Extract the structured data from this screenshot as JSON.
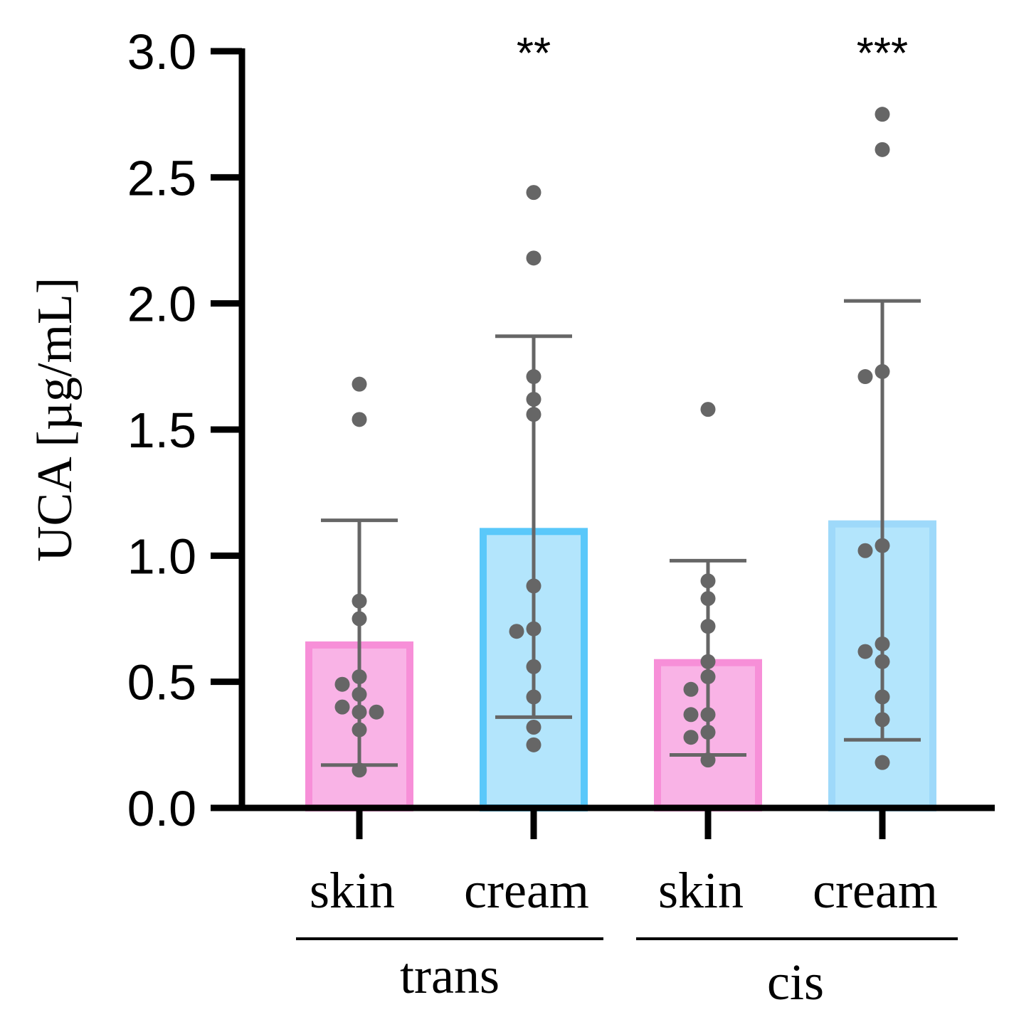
{
  "chart_data": {
    "type": "bar",
    "ylabel": "UCA [µg/mL]",
    "ylim": [
      0,
      3.0
    ],
    "yticks": [
      "0.0",
      "0.5",
      "1.0",
      "1.5",
      "2.0",
      "2.5",
      "3.0"
    ],
    "grid": false,
    "categories": [
      "skin",
      "cream",
      "skin",
      "cream"
    ],
    "groups": [
      {
        "label": "trans",
        "categories": [
          0,
          1
        ]
      },
      {
        "label": "cis",
        "categories": [
          2,
          3
        ]
      }
    ],
    "bars": [
      {
        "category": "skin",
        "group": "trans",
        "mean": 0.66,
        "error_low": 0.17,
        "error_high": 1.14,
        "significance": "",
        "fill": "#f9b3e6",
        "stroke": "#f78fd8",
        "points": [
          1.68,
          1.54,
          0.82,
          0.75,
          0.52,
          0.49,
          0.45,
          0.4,
          0.38,
          0.38,
          0.31,
          0.15
        ]
      },
      {
        "category": "cream",
        "group": "trans",
        "mean": 1.11,
        "error_low": 0.36,
        "error_high": 1.87,
        "significance": "**",
        "fill": "#b3e5fc",
        "stroke": "#5ac8fa",
        "points": [
          2.44,
          2.18,
          1.71,
          1.62,
          1.56,
          0.88,
          0.71,
          0.7,
          0.56,
          0.44,
          0.32,
          0.25
        ]
      },
      {
        "category": "skin",
        "group": "cis",
        "mean": 0.59,
        "error_low": 0.21,
        "error_high": 0.98,
        "significance": "",
        "fill": "#f9b3e6",
        "stroke": "#f78fd8",
        "points": [
          1.58,
          0.9,
          0.83,
          0.72,
          0.58,
          0.52,
          0.47,
          0.37,
          0.37,
          0.3,
          0.28,
          0.19
        ]
      },
      {
        "category": "cream",
        "group": "cis",
        "mean": 1.14,
        "error_low": 0.27,
        "error_high": 2.01,
        "significance": "***",
        "fill": "#b3e5fc",
        "stroke": "#9ed9fa",
        "points": [
          2.75,
          2.61,
          1.73,
          1.71,
          1.04,
          1.02,
          0.65,
          0.62,
          0.58,
          0.44,
          0.35,
          0.18
        ]
      }
    ],
    "colors": {
      "axis": "#000000",
      "point": "#666666",
      "error_bar": "#666666"
    }
  }
}
